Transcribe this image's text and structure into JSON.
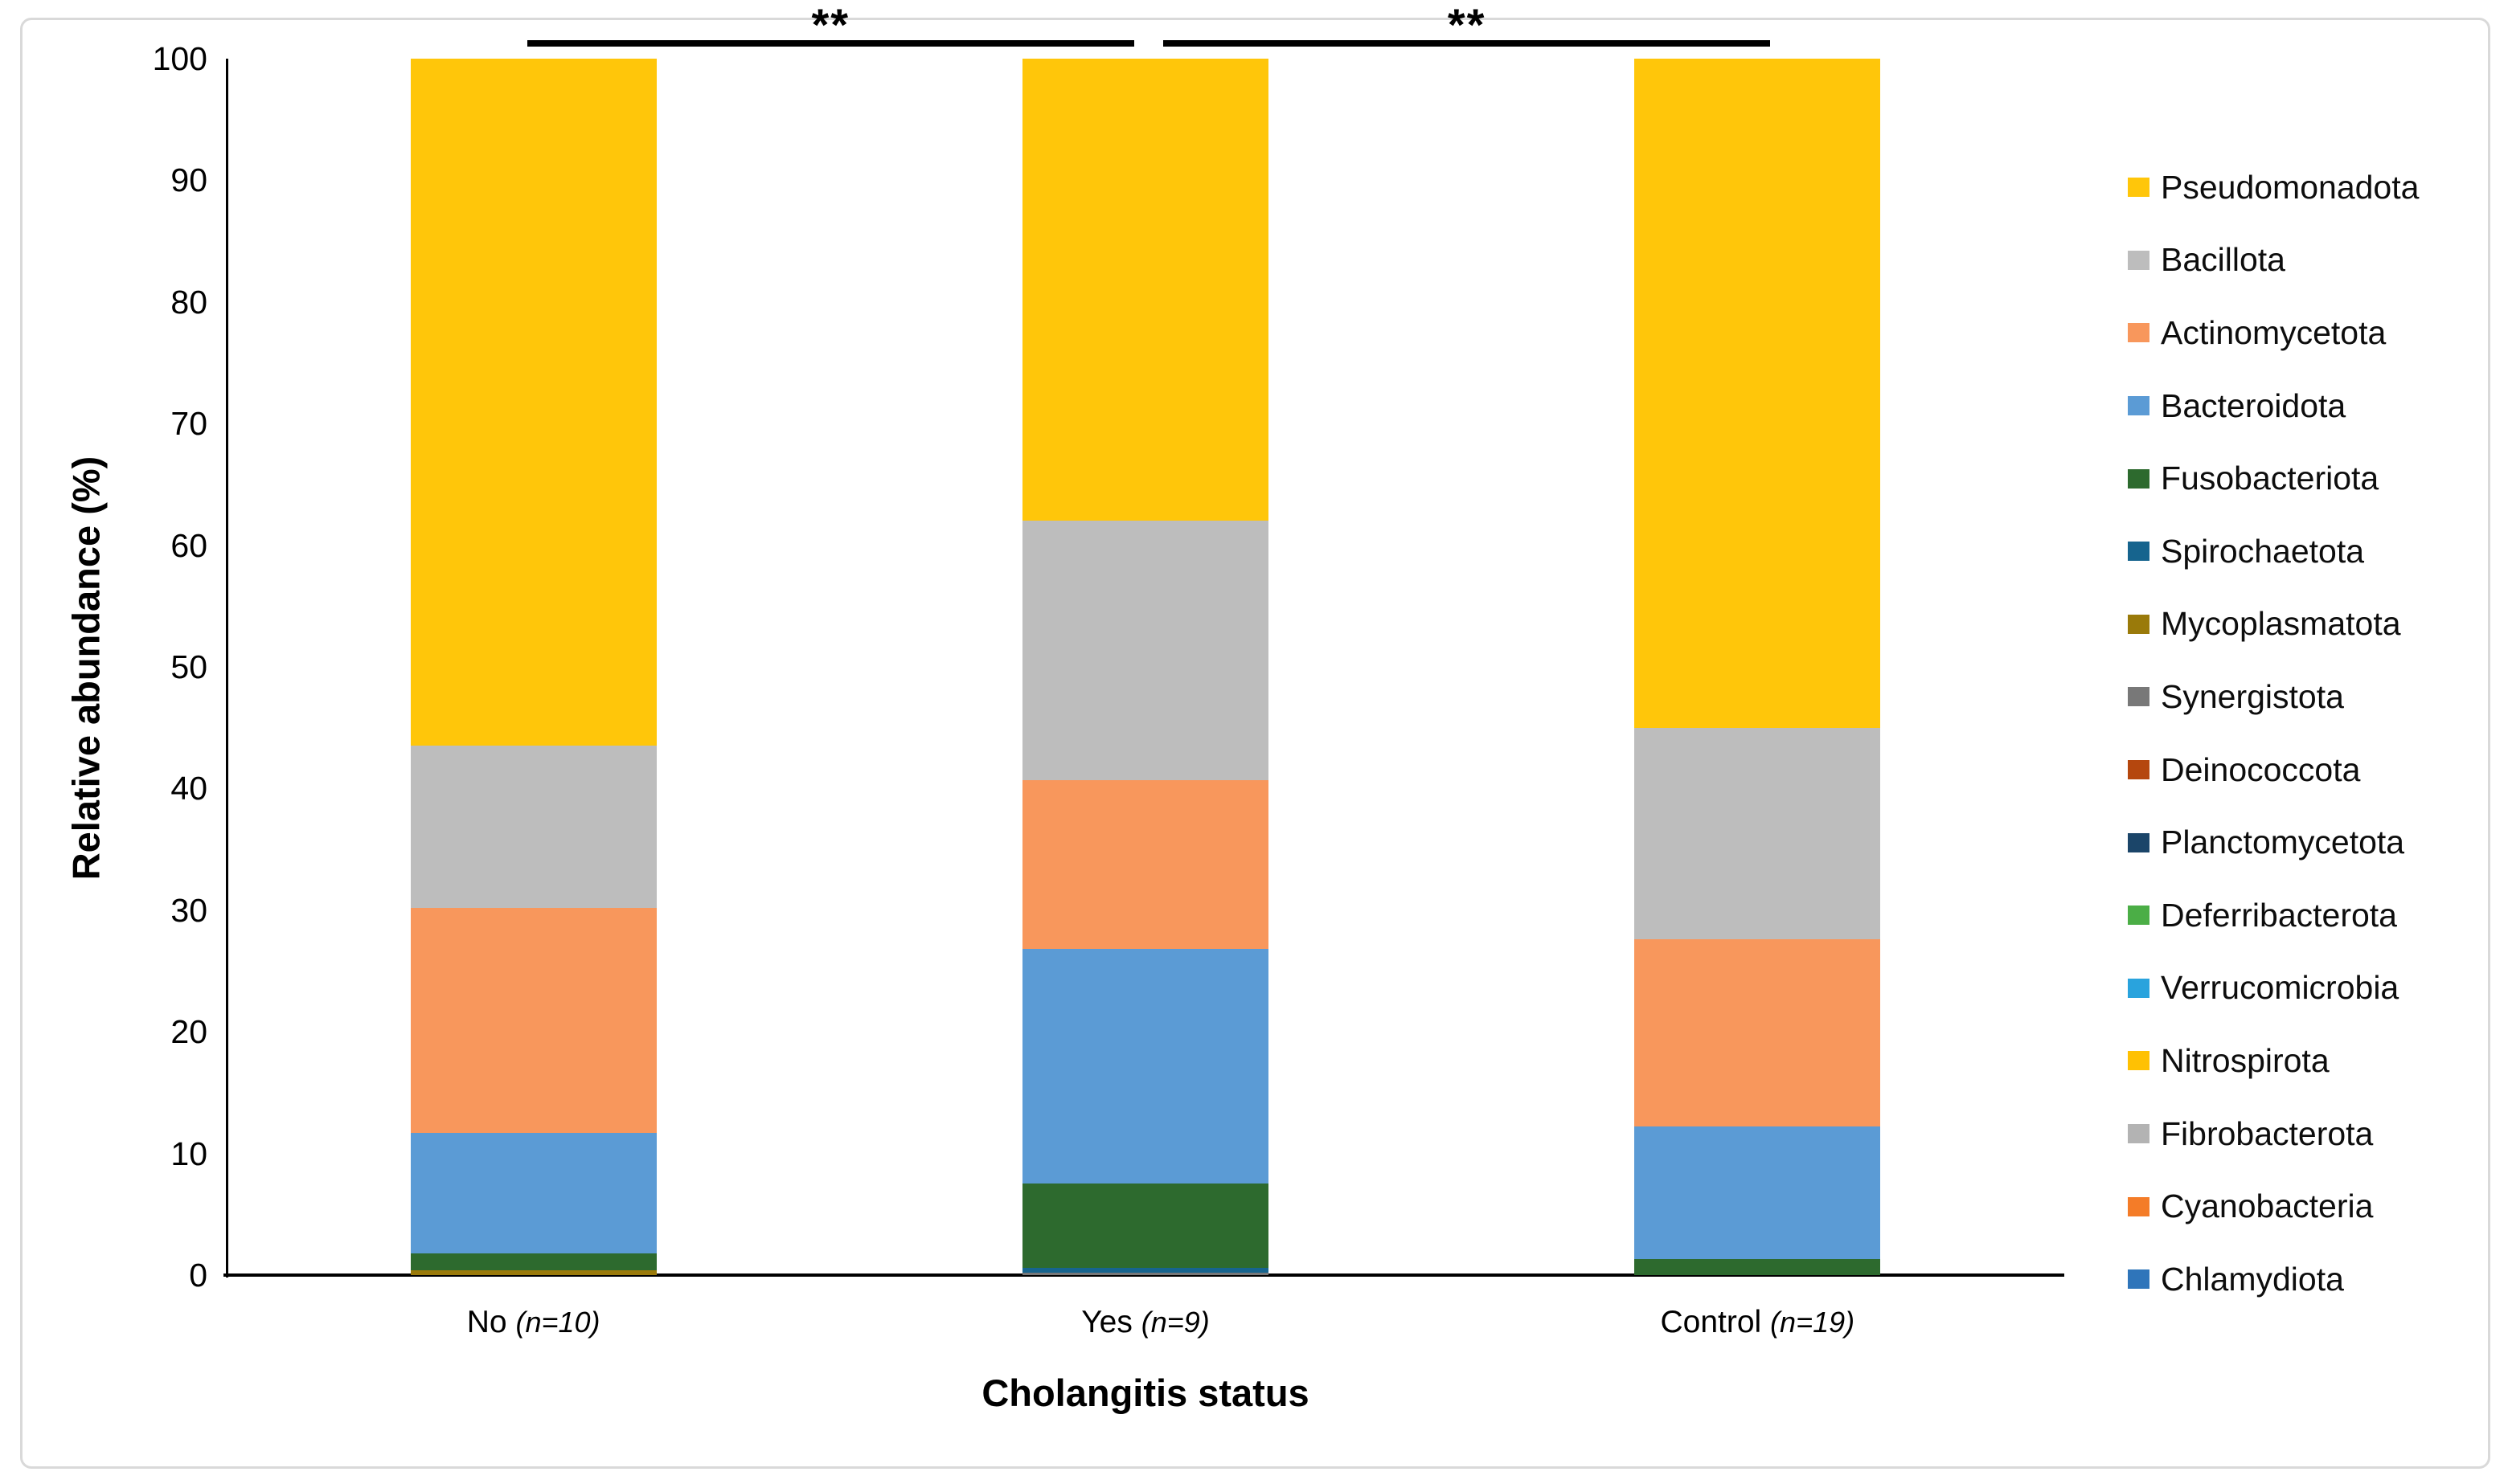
{
  "figure": {
    "border_color": "#d9d9d9",
    "background": "#ffffff"
  },
  "chart_data": {
    "type": "bar",
    "variant": "stacked-percentage",
    "title": "",
    "xlabel": "Cholangitis status",
    "ylabel": "Relative abundance (%)",
    "ylim": [
      0,
      100
    ],
    "yticks": [
      0,
      10,
      20,
      30,
      40,
      50,
      60,
      70,
      80,
      90,
      100
    ],
    "grid": false,
    "legend_position": "right",
    "categories": [
      "No",
      "Yes",
      "Control"
    ],
    "category_notes": [
      "(n=10)",
      "(n=9)",
      "(n=19)"
    ],
    "legend": [
      {
        "name": "Pseudomonadota",
        "color": "#FFC60A"
      },
      {
        "name": "Bacillota",
        "color": "#BDBDBD"
      },
      {
        "name": "Actinomycetota",
        "color": "#F8975C"
      },
      {
        "name": "Bacteroidota",
        "color": "#5B9BD5"
      },
      {
        "name": "Fusobacteriota",
        "color": "#2D6A2E"
      },
      {
        "name": "Spirochaetota",
        "color": "#16648E"
      },
      {
        "name": "Mycoplasmatota",
        "color": "#9A7A0A"
      },
      {
        "name": "Synergistota",
        "color": "#787878"
      },
      {
        "name": "Deinococcota",
        "color": "#B5470E"
      },
      {
        "name": "Planctomycetota",
        "color": "#1B4569"
      },
      {
        "name": "Deferribacterota",
        "color": "#4BAE46"
      },
      {
        "name": "Verrucomicrobia",
        "color": "#29A3DD"
      },
      {
        "name": "Nitrospirota",
        "color": "#FFC103"
      },
      {
        "name": "Fibrobacterota",
        "color": "#B3B3B3"
      },
      {
        "name": "Cyanobacteria",
        "color": "#F47C28"
      },
      {
        "name": "Chlamydiota",
        "color": "#2F75BA"
      }
    ],
    "series": [
      {
        "name": "Pseudomonadota",
        "color": "#FFC60A",
        "values": [
          56.5,
          38.0,
          55.0
        ]
      },
      {
        "name": "Bacillota",
        "color": "#BDBDBD",
        "values": [
          13.3,
          21.3,
          17.4
        ]
      },
      {
        "name": "Actinomycetota",
        "color": "#F8975C",
        "values": [
          18.5,
          13.9,
          15.4
        ]
      },
      {
        "name": "Bacteroidota",
        "color": "#5B9BD5",
        "values": [
          9.9,
          19.3,
          10.9
        ]
      },
      {
        "name": "Fusobacteriota",
        "color": "#2D6A2E",
        "values": [
          1.4,
          6.9,
          1.3
        ]
      },
      {
        "name": "Spirochaetota",
        "color": "#16648E",
        "values": [
          0,
          0.4,
          0
        ]
      },
      {
        "name": "Mycoplasmatota",
        "color": "#9A7A0A",
        "values": [
          0.4,
          0,
          0
        ]
      },
      {
        "name": "Synergistota",
        "color": "#787878",
        "values": [
          0,
          0.2,
          0
        ]
      },
      {
        "name": "Deinococcota",
        "color": "#B5470E",
        "values": [
          0,
          0,
          0
        ]
      },
      {
        "name": "Planctomycetota",
        "color": "#1B4569",
        "values": [
          0,
          0,
          0
        ]
      },
      {
        "name": "Deferribacterota",
        "color": "#4BAE46",
        "values": [
          0,
          0,
          0
        ]
      },
      {
        "name": "Verrucomicrobia",
        "color": "#29A3DD",
        "values": [
          0,
          0,
          0
        ]
      },
      {
        "name": "Nitrospirota",
        "color": "#FFC103",
        "values": [
          0,
          0,
          0
        ]
      },
      {
        "name": "Fibrobacterota",
        "color": "#B3B3B3",
        "values": [
          0,
          0,
          0
        ]
      },
      {
        "name": "Cyanobacteria",
        "color": "#F47C28",
        "values": [
          0,
          0,
          0
        ]
      },
      {
        "name": "Chlamydiota",
        "color": "#2F75BA",
        "values": [
          0,
          0,
          0
        ]
      }
    ],
    "annotations": [
      {
        "label": "**",
        "from_category": "No",
        "to_category": "Yes"
      },
      {
        "label": "**",
        "from_category": "Yes",
        "to_category": "Control"
      }
    ]
  }
}
